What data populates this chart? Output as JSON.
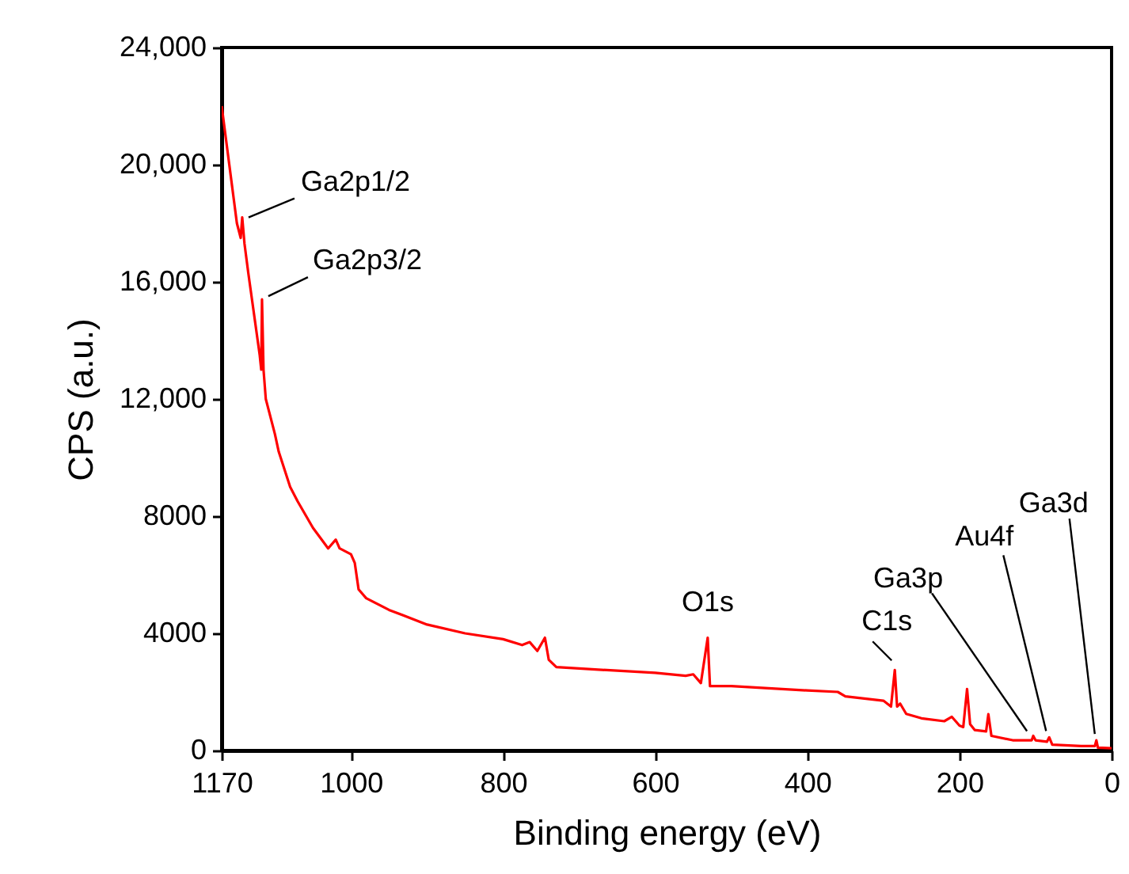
{
  "chart_data": {
    "type": "line",
    "xlabel": "Binding energy (eV)",
    "ylabel": "CPS (a.u.)",
    "xlim": [
      1170,
      0
    ],
    "xticks": [
      1170,
      1000,
      800,
      600,
      400,
      200,
      0
    ],
    "ylim": [
      0,
      24000
    ],
    "yticks": [
      0,
      {
        "value": 4000,
        "label": "4000"
      },
      {
        "value": 8000,
        "label": "8000"
      },
      {
        "value": 12000,
        "label": "12,000"
      },
      {
        "value": 16000,
        "label": "16,000"
      },
      {
        "value": 20000,
        "label": "20,000"
      },
      {
        "value": 24000,
        "label": "24,000"
      }
    ],
    "grid": false,
    "marker": "none",
    "line_style": "solid",
    "series": [
      {
        "color": "#ff0000",
        "x": [
          1170,
          1160,
          1150,
          1145,
          1143,
          1140,
          1135,
          1120,
          1118,
          1117,
          1115,
          1112,
          1100,
          1095,
          1080,
          1070,
          1050,
          1030,
          1020,
          1015,
          1000,
          995,
          990,
          980,
          950,
          900,
          850,
          800,
          775,
          765,
          755,
          745,
          740,
          730,
          700,
          600,
          560,
          550,
          540,
          531,
          528,
          500,
          400,
          360,
          350,
          300,
          290,
          285,
          282,
          278,
          270,
          250,
          220,
          210,
          200,
          195,
          190,
          186,
          180,
          165,
          162,
          158,
          130,
          105,
          103,
          100,
          85,
          82,
          78,
          40,
          22,
          20,
          18,
          0
        ],
        "values": [
          22000,
          20000,
          18000,
          17500,
          18200,
          17300,
          16300,
          13500,
          13000,
          15400,
          13000,
          12000,
          10800,
          10200,
          9000,
          8500,
          7600,
          6900,
          7200,
          6900,
          6700,
          6400,
          5500,
          5200,
          4800,
          4300,
          4000,
          3800,
          3600,
          3700,
          3400,
          3850,
          3100,
          2850,
          2800,
          2650,
          2550,
          2600,
          2300,
          3850,
          2200,
          2200,
          2050,
          2000,
          1850,
          1700,
          1500,
          2750,
          1500,
          1600,
          1250,
          1100,
          1000,
          1150,
          850,
          800,
          2100,
          900,
          700,
          650,
          1240,
          500,
          350,
          350,
          500,
          350,
          300,
          450,
          200,
          150,
          150,
          350,
          100,
          80
        ]
      }
    ],
    "annotations": [
      {
        "text": "Ga2p1/2",
        "x": 1143,
        "y": 18200
      },
      {
        "text": "Ga2p3/2",
        "x": 1117,
        "y": 15400
      },
      {
        "text": "O1s",
        "x": 531,
        "y": 3850
      },
      {
        "text": "C1s",
        "x": 285,
        "y": 2750
      },
      {
        "text": "Ga3p",
        "x": 105,
        "y": 500
      },
      {
        "text": "Au4f",
        "x": 84,
        "y": 450
      },
      {
        "text": "Ga3d",
        "x": 20,
        "y": 350
      }
    ]
  }
}
